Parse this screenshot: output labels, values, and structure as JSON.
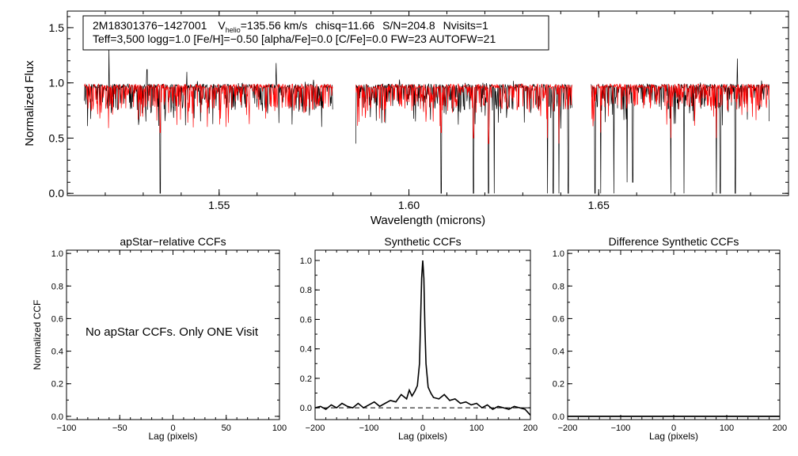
{
  "colors": {
    "observed": "#000000",
    "model": "#ff0000",
    "axes": "#000000"
  },
  "info_box": {
    "star_id": "2M18301376−1427001",
    "vhelio_label": "V",
    "vhelio_sub": "helio",
    "vhelio_value": "=135.56 km/s",
    "chisq": "chisq=11.66",
    "snr": "S/N=204.8",
    "nvisits": "Nvisits=1",
    "params_line": "Teff=3,500 logg=1.0 [Fe/H]=−0.50 [alpha/Fe]=0.0 [C/Fe]=0.0 FW=23 AUTOFW=21"
  },
  "chart_data": [
    {
      "type": "line",
      "xlabel": "Wavelength (microns)",
      "ylabel": "Normalized Flux",
      "xlim": [
        1.51,
        1.7
      ],
      "ylim": [
        -0.02,
        1.65
      ],
      "xticks": [
        1.55,
        1.6,
        1.65
      ],
      "xtick_labels": [
        "1.55",
        "1.60",
        "1.65"
      ],
      "yticks": [
        0.0,
        0.5,
        1.0,
        1.5
      ],
      "ytick_labels": [
        "0.0",
        "0.5",
        "1.0",
        "1.5"
      ],
      "chips": [
        [
          1.5145,
          1.58
        ],
        [
          1.586,
          1.643
        ],
        [
          1.648,
          1.695
        ]
      ],
      "continuum_level": 0.97,
      "series": [
        {
          "color": "#000000",
          "deep_lines": [
            [
              1.5345,
              0.0
            ],
            [
              1.586,
              0.45
            ],
            [
              1.6085,
              0.0
            ],
            [
              1.617,
              0.0
            ],
            [
              1.621,
              0.0
            ],
            [
              1.6225,
              0.0
            ],
            [
              1.6365,
              0.0
            ],
            [
              1.638,
              0.0
            ],
            [
              1.6395,
              0.0
            ],
            [
              1.642,
              0.0
            ],
            [
              1.649,
              0.0
            ],
            [
              1.6505,
              0.0
            ],
            [
              1.654,
              0.0
            ],
            [
              1.6575,
              0.1
            ],
            [
              1.659,
              0.1
            ],
            [
              1.669,
              0.0
            ],
            [
              1.6725,
              0.0
            ],
            [
              1.681,
              0.0
            ],
            [
              1.682,
              0.0
            ],
            [
              1.686,
              0.0
            ]
          ],
          "spikes": [
            [
              1.521,
              1.33
            ],
            [
              1.531,
              1.12
            ],
            [
              1.5415,
              1.1
            ],
            [
              1.565,
              1.18
            ],
            [
              1.6865,
              1.22
            ]
          ]
        },
        {
          "color": "#ff0000",
          "deep_lines": [
            [
              1.5345,
              0.55
            ],
            [
              1.6085,
              0.55
            ],
            [
              1.617,
              0.5
            ],
            [
              1.621,
              0.45
            ],
            [
              1.6365,
              0.5
            ],
            [
              1.6395,
              0.45
            ],
            [
              1.6505,
              0.55
            ],
            [
              1.669,
              0.5
            ],
            [
              1.681,
              0.5
            ]
          ]
        }
      ]
    },
    {
      "type": "line",
      "title": "apStar−relative CCFs",
      "xlabel": "Lag (pixels)",
      "ylabel": "Normalized CCF",
      "xlim": [
        -100,
        100
      ],
      "ylim": [
        -0.02,
        1.02
      ],
      "xticks": [
        -100,
        -50,
        0,
        50,
        100
      ],
      "xtick_labels": [
        "−100",
        "−50",
        "0",
        "50",
        "100"
      ],
      "yticks": [
        0.0,
        0.2,
        0.4,
        0.6,
        0.8,
        1.0
      ],
      "ytick_labels": [
        "0.0",
        "0.2",
        "0.4",
        "0.6",
        "0.8",
        "1.0"
      ],
      "annotation": "No apStar CCFs.  Only ONE Visit"
    },
    {
      "type": "line",
      "title": "Synthetic CCFs",
      "xlabel": "Lag (pixels)",
      "xlim": [
        -200,
        200
      ],
      "ylim": [
        -0.08,
        1.07
      ],
      "xticks": [
        -200,
        -100,
        0,
        100,
        200
      ],
      "xtick_labels": [
        "−200",
        "−100",
        "0",
        "100",
        "200"
      ],
      "yticks": [
        0.0,
        0.2,
        0.4,
        0.6,
        0.8,
        1.0
      ],
      "ytick_labels": [
        "0.0",
        "0.2",
        "0.4",
        "0.6",
        "0.8",
        "1.0"
      ],
      "reference_line": 0.0,
      "series": [
        {
          "color": "#000000",
          "x": [
            -200,
            -190,
            -180,
            -170,
            -160,
            -150,
            -140,
            -130,
            -120,
            -110,
            -100,
            -90,
            -80,
            -70,
            -60,
            -50,
            -40,
            -30,
            -25,
            -20,
            -15,
            -10,
            -6,
            -4,
            -2,
            0,
            2,
            4,
            6,
            10,
            15,
            20,
            30,
            40,
            50,
            60,
            70,
            80,
            90,
            100,
            110,
            120,
            130,
            140,
            150,
            160,
            170,
            180,
            190,
            200
          ],
          "y": [
            0.0,
            0.01,
            -0.01,
            0.02,
            0.0,
            0.03,
            0.01,
            0.0,
            0.03,
            0.0,
            0.02,
            0.04,
            0.01,
            0.03,
            0.05,
            0.04,
            0.09,
            0.06,
            0.12,
            0.08,
            0.11,
            0.15,
            0.3,
            0.6,
            0.88,
            1.0,
            0.88,
            0.55,
            0.3,
            0.14,
            0.1,
            0.07,
            0.06,
            0.09,
            0.05,
            0.06,
            0.03,
            0.04,
            0.02,
            0.03,
            0.0,
            0.02,
            -0.01,
            0.01,
            0.0,
            -0.01,
            0.01,
            0.0,
            -0.01,
            -0.05
          ]
        }
      ]
    },
    {
      "type": "line",
      "title": "Difference Synthetic CCFs",
      "xlabel": "Lag (pixels)",
      "xlim": [
        -200,
        200
      ],
      "ylim": [
        -0.02,
        1.02
      ],
      "xticks": [
        -200,
        -100,
        0,
        100,
        200
      ],
      "xtick_labels": [
        "−200",
        "−100",
        "0",
        "100",
        "200"
      ],
      "yticks": [
        0.0,
        0.2,
        0.4,
        0.6,
        0.8,
        1.0
      ],
      "ytick_labels": [
        "0.0",
        "0.2",
        "0.4",
        "0.6",
        "0.8",
        "1.0"
      ],
      "series": [
        {
          "color": "#000000",
          "x": [
            -200,
            200
          ],
          "y": [
            0.0,
            0.0
          ]
        }
      ]
    }
  ]
}
